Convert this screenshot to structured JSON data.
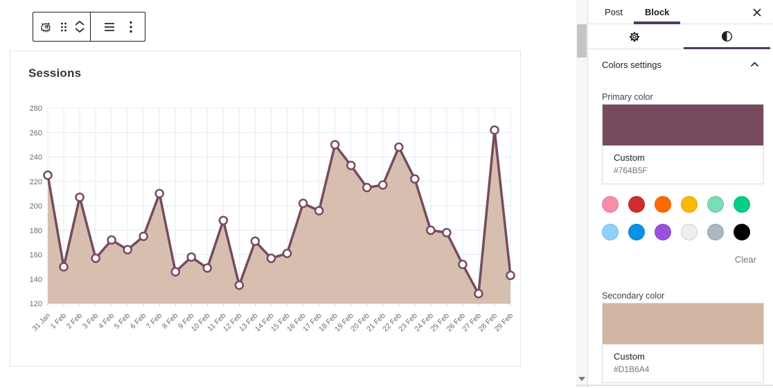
{
  "editor": {
    "block_toolbar": {
      "icons": [
        "block-type-icon",
        "drag-handle-icon",
        "move-up-icon",
        "move-down-icon",
        "align-icon",
        "options-icon"
      ]
    }
  },
  "chart_data": {
    "type": "area",
    "title": "Sessions",
    "categories": [
      "31 Jan",
      "1 Feb",
      "2 Feb",
      "3 Feb",
      "4 Feb",
      "5 Feb",
      "6 Feb",
      "7 Feb",
      "8 Feb",
      "9 Feb",
      "10 Feb",
      "11 Feb",
      "12 Feb",
      "13 Feb",
      "14 Feb",
      "15 Feb",
      "16 Feb",
      "17 Feb",
      "18 Feb",
      "19 Feb",
      "20 Feb",
      "21 Feb",
      "22 Feb",
      "23 Feb",
      "24 Feb",
      "25 Feb",
      "26 Feb",
      "27 Feb",
      "28 Feb",
      "29 Feb"
    ],
    "values": [
      225,
      150,
      207,
      157,
      172,
      164,
      175,
      210,
      146,
      158,
      149,
      188,
      135,
      171,
      157,
      161,
      202,
      196,
      250,
      233,
      215,
      217,
      248,
      222,
      180,
      178,
      152,
      128,
      262,
      143
    ],
    "xlabel": "",
    "ylabel": "",
    "ylim": [
      120,
      280
    ],
    "y_ticks": [
      280,
      260,
      240,
      220,
      200,
      180,
      160,
      140,
      120
    ],
    "grid": true,
    "legend": false,
    "line_color": "#764B5F",
    "fill_color": "#D1B6A4",
    "fill_opacity": 0.88,
    "point_fill": "#FFFFFF",
    "grid_color": "#DEEBF7",
    "axis_line_color": "#CCD0D4",
    "axis_text_color": "#6B6B6B"
  },
  "sidebar": {
    "accent_color": "#4E3A66",
    "header": {
      "tabs": [
        {
          "label": "Post",
          "active": false
        },
        {
          "label": "Block",
          "active": true
        }
      ]
    },
    "settings_tabs": [
      {
        "icon": "gear-icon",
        "active": false
      },
      {
        "icon": "styles-icon",
        "active": true
      }
    ],
    "colors_panel": {
      "title": "Colors settings",
      "primary": {
        "label": "Primary color",
        "custom_label": "Custom",
        "hex": "#764B5F"
      },
      "secondary": {
        "label": "Secondary color",
        "custom_label": "Custom",
        "hex": "#D1B6A4"
      },
      "palette": [
        "#F78DA7",
        "#CF2E2E",
        "#FF6900",
        "#FCB900",
        "#7BDCB5",
        "#00D084",
        "#8ED1FC",
        "#0693E3",
        "#9B51E0",
        "#EEEEEE",
        "#ABB8C3",
        "#000000"
      ],
      "clear_label": "Clear"
    }
  }
}
